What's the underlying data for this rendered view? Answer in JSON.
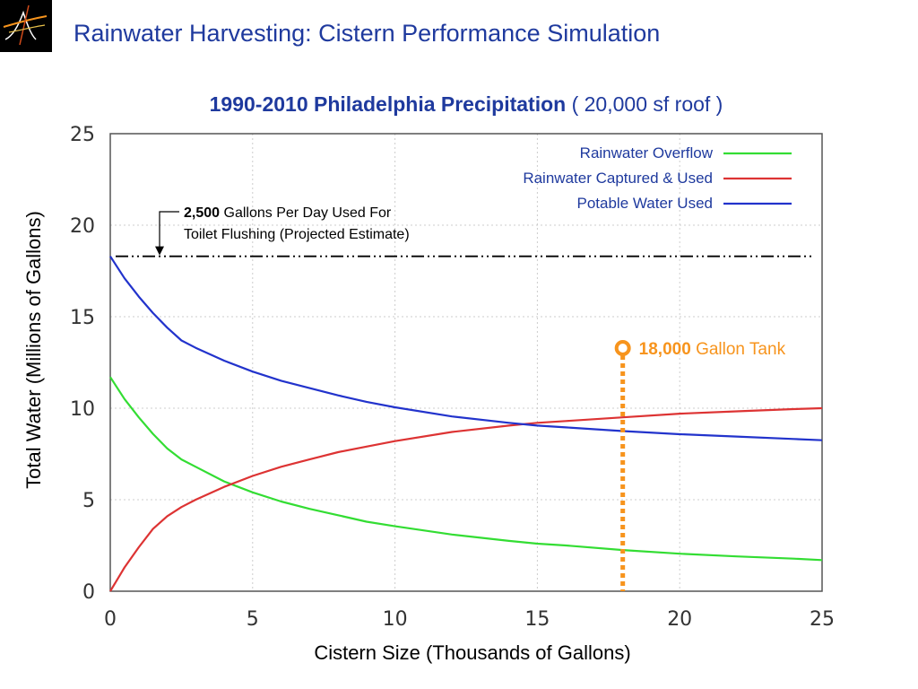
{
  "slide": {
    "title": "Rainwater Harvesting: Cistern Performance Simulation"
  },
  "chart_data": {
    "type": "line",
    "title_bold": "1990-2010  Philadelphia Precipitation",
    "title_rest": "( 20,000 sf roof )",
    "xlabel": "Cistern Size (Thousands of Gallons)",
    "ylabel": "Total Water (Millions of Gallons)",
    "xlim": [
      0,
      25
    ],
    "ylim": [
      0,
      25
    ],
    "xticks": [
      0,
      5,
      10,
      15,
      20,
      25
    ],
    "yticks": [
      0,
      5,
      10,
      15,
      20,
      25
    ],
    "grid": true,
    "legend_position": "top-right",
    "series": [
      {
        "name": "Rainwater Overflow",
        "color": "#33dd33",
        "x": [
          0,
          0.5,
          1,
          1.5,
          2,
          2.5,
          3,
          4,
          5,
          6,
          7,
          8,
          9,
          10,
          12,
          14,
          15,
          16,
          18,
          20,
          22,
          24,
          25
        ],
        "y": [
          11.7,
          10.5,
          9.5,
          8.6,
          7.8,
          7.2,
          6.8,
          6.0,
          5.4,
          4.9,
          4.5,
          4.15,
          3.8,
          3.55,
          3.1,
          2.75,
          2.6,
          2.5,
          2.25,
          2.05,
          1.9,
          1.78,
          1.7
        ]
      },
      {
        "name": "Rainwater Captured & Used",
        "color": "#dd3333",
        "x": [
          0,
          0.5,
          1,
          1.5,
          2,
          2.5,
          3,
          4,
          5,
          6,
          7,
          8,
          9,
          10,
          12,
          14,
          15,
          16,
          18,
          20,
          22,
          24,
          25
        ],
        "y": [
          0,
          1.3,
          2.4,
          3.4,
          4.1,
          4.6,
          5.0,
          5.7,
          6.3,
          6.8,
          7.2,
          7.6,
          7.9,
          8.2,
          8.7,
          9.05,
          9.2,
          9.3,
          9.5,
          9.7,
          9.83,
          9.95,
          10.0
        ]
      },
      {
        "name": "Potable Water Used",
        "color": "#2233cc",
        "x": [
          0,
          0.5,
          1,
          1.5,
          2,
          2.5,
          3,
          4,
          5,
          6,
          7,
          8,
          9,
          10,
          12,
          14,
          15,
          16,
          18,
          20,
          22,
          24,
          25
        ],
        "y": [
          18.3,
          17.1,
          16.1,
          15.2,
          14.4,
          13.7,
          13.3,
          12.6,
          12.0,
          11.5,
          11.1,
          10.7,
          10.35,
          10.05,
          9.55,
          9.2,
          9.05,
          8.95,
          8.75,
          8.58,
          8.45,
          8.32,
          8.25
        ]
      }
    ],
    "reference_line": {
      "y": 18.3,
      "label_bold": "2,500",
      "label_line1": " Gallons Per Day Used For",
      "label_line2": "Toilet Flushing (Projected Estimate)"
    },
    "marker": {
      "x": 18,
      "color": "#f7941d",
      "label_bold": "18,000",
      "label_rest": " Gallon Tank"
    }
  }
}
